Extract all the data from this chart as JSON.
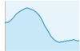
{
  "x": [
    0,
    1,
    2,
    3,
    4,
    5,
    6,
    7,
    8,
    9,
    10,
    11,
    12,
    13,
    14,
    15,
    16,
    17,
    18,
    19,
    20,
    21,
    22,
    23,
    24,
    25,
    26,
    27,
    28,
    29,
    30,
    31,
    32,
    33,
    34,
    35,
    36,
    37,
    38,
    39,
    40,
    41,
    42,
    43,
    44,
    45,
    46,
    47,
    48,
    49,
    50
  ],
  "y": [
    52,
    54,
    53,
    55,
    57,
    60,
    63,
    67,
    70,
    72,
    74,
    76,
    77,
    79,
    80,
    81,
    80,
    79,
    78,
    77,
    75,
    73,
    70,
    67,
    63,
    58,
    52,
    46,
    42,
    37,
    32,
    27,
    24,
    21,
    19,
    17,
    16,
    15,
    17,
    16,
    18,
    17,
    19,
    18,
    20,
    19,
    21,
    20,
    19,
    18,
    19
  ],
  "fill_color": "#c8e8f8",
  "line_color": "#1a8ad4",
  "background_color": "#ffffff",
  "plot_bg_color": "#e8f4fc",
  "ylim": [
    0,
    95
  ],
  "xlim": [
    0,
    50
  ]
}
